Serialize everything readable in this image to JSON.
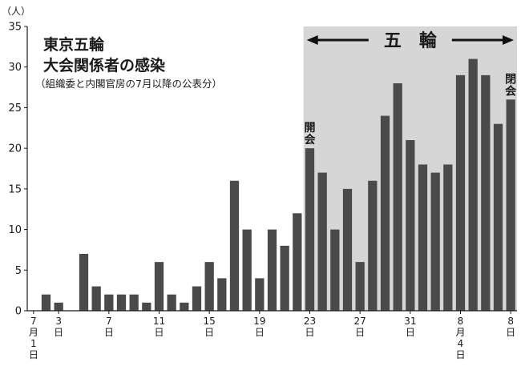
{
  "chart_data": {
    "type": "bar",
    "title_line1": "東京五輪",
    "title_line2": "大会関係者の感染",
    "subtitle": "（組織委と内閣官房の7月以降の公表分）",
    "unit_label": "（人）",
    "y_ticks": [
      "0",
      "5",
      "10",
      "15",
      "20",
      "25",
      "30",
      "35"
    ],
    "ylim": [
      0,
      35
    ],
    "bar_color": "#4a4a4a",
    "band_color": "#d6d6d6",
    "games_label": "五　輪",
    "opening_label": "開会",
    "closing_label": "閉会",
    "band_start_index": 22,
    "band_end_index": 38,
    "opening_index": 22,
    "closing_index": 38,
    "x_labels": [
      {
        "index": 0,
        "lines": [
          "7",
          "月",
          "1",
          "日"
        ]
      },
      {
        "index": 2,
        "lines": [
          "3",
          "日"
        ]
      },
      {
        "index": 6,
        "lines": [
          "7",
          "日"
        ]
      },
      {
        "index": 10,
        "lines": [
          "11",
          "日"
        ]
      },
      {
        "index": 14,
        "lines": [
          "15",
          "日"
        ]
      },
      {
        "index": 18,
        "lines": [
          "19",
          "日"
        ]
      },
      {
        "index": 22,
        "lines": [
          "23",
          "日"
        ]
      },
      {
        "index": 26,
        "lines": [
          "27",
          "日"
        ]
      },
      {
        "index": 30,
        "lines": [
          "31",
          "日"
        ]
      },
      {
        "index": 34,
        "lines": [
          "8",
          "月",
          "4",
          "日"
        ]
      },
      {
        "index": 38,
        "lines": [
          "8",
          "日"
        ]
      }
    ],
    "values": [
      0,
      2,
      1,
      0,
      7,
      3,
      2,
      2,
      2,
      1,
      6,
      2,
      1,
      3,
      6,
      4,
      16,
      10,
      4,
      10,
      8,
      12,
      20,
      17,
      10,
      15,
      6,
      16,
      24,
      28,
      21,
      18,
      17,
      18,
      29,
      31,
      29,
      23,
      26
    ]
  }
}
